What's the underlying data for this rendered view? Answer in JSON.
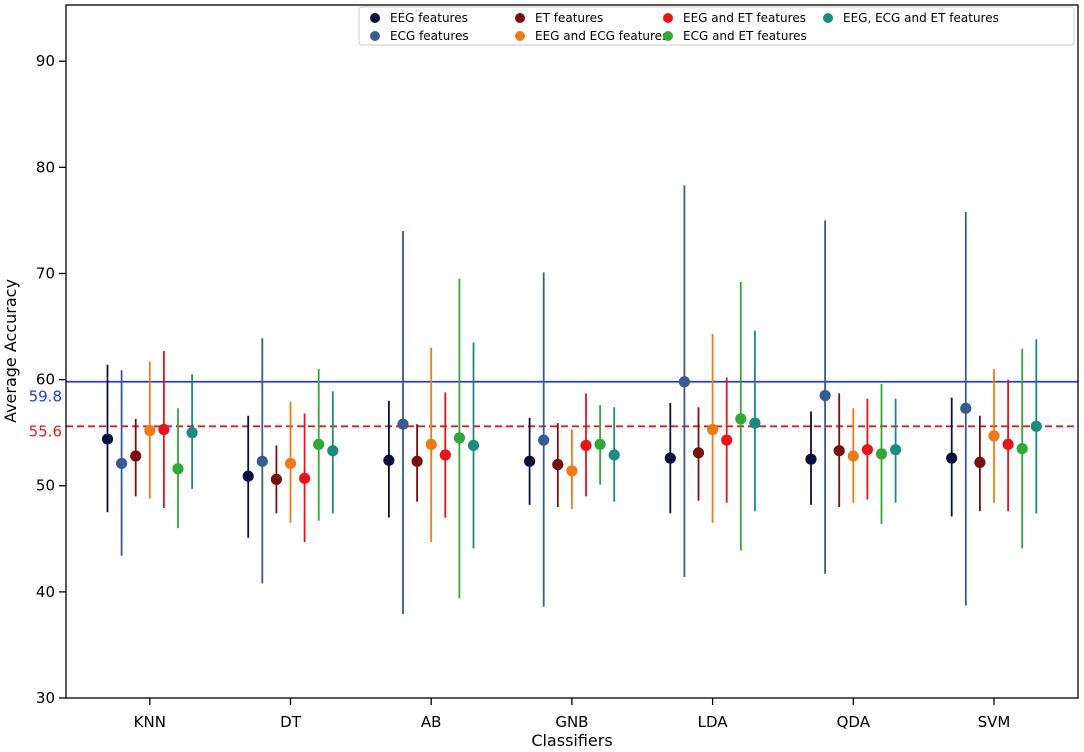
{
  "chart_data": {
    "type": "scatter",
    "subtype": "errorbar",
    "xlabel": "Classifiers",
    "ylabel": "Average Accuracy",
    "categories": [
      "KNN",
      "DT",
      "AB",
      "GNB",
      "LDA",
      "QDA",
      "SVM"
    ],
    "yticks": [
      30,
      40,
      50,
      60,
      70,
      80,
      90
    ],
    "ytick_labels": [
      "30",
      "40",
      "50",
      "60",
      "70",
      "80",
      "90"
    ],
    "ylim": [
      30,
      95.3
    ],
    "grid": false,
    "legend_position": "top-right",
    "reference_lines": [
      {
        "value": 59.8,
        "label": "59.8",
        "style": "solid",
        "color": "#1f3fd1"
      },
      {
        "value": 55.6,
        "label": "55.6",
        "style": "dashed",
        "color": "#e31a1c"
      }
    ],
    "series": [
      {
        "name": "EEG features",
        "color": "#0b0f3d",
        "values": [
          54.4,
          50.9,
          52.4,
          52.3,
          52.6,
          52.5,
          52.6
        ],
        "lower": [
          47.5,
          45.1,
          47.0,
          48.2,
          47.4,
          48.2,
          47.1
        ],
        "upper": [
          61.4,
          56.6,
          58.0,
          56.4,
          57.8,
          57.0,
          58.3
        ]
      },
      {
        "name": "ECG features",
        "color": "#3a5a94",
        "values": [
          52.1,
          52.3,
          55.8,
          54.3,
          59.8,
          58.5,
          57.3
        ],
        "lower": [
          43.4,
          40.8,
          37.9,
          38.6,
          41.4,
          41.7,
          38.7
        ],
        "upper": [
          60.9,
          63.9,
          74.0,
          70.1,
          78.3,
          75.0,
          75.8
        ]
      },
      {
        "name": "ET features",
        "color": "#7a0f0f",
        "values": [
          52.8,
          50.6,
          52.3,
          52.0,
          53.1,
          53.3,
          52.2
        ],
        "lower": [
          49.0,
          47.4,
          48.5,
          48.0,
          48.6,
          48.0,
          47.6
        ],
        "upper": [
          56.3,
          53.8,
          55.8,
          55.9,
          57.4,
          58.7,
          56.6
        ]
      },
      {
        "name": "EEG and ECG features",
        "color": "#f07a17",
        "values": [
          55.2,
          52.1,
          53.9,
          51.4,
          55.3,
          52.8,
          54.7
        ],
        "lower": [
          48.8,
          46.5,
          44.7,
          47.8,
          46.5,
          48.4,
          48.4
        ],
        "upper": [
          61.7,
          57.9,
          63.0,
          55.3,
          64.3,
          57.3,
          61.0
        ]
      },
      {
        "name": "EEG and ET features",
        "color": "#e8141b",
        "values": [
          55.3,
          50.7,
          52.9,
          53.8,
          54.3,
          53.4,
          53.9
        ],
        "lower": [
          47.9,
          44.7,
          47.0,
          49.0,
          48.4,
          48.7,
          47.6
        ],
        "upper": [
          62.7,
          56.8,
          58.8,
          58.7,
          60.2,
          58.2,
          60.0
        ]
      },
      {
        "name": "ECG and ET features",
        "color": "#33a83a",
        "values": [
          51.6,
          53.9,
          54.5,
          53.9,
          56.3,
          53.0,
          53.5
        ],
        "lower": [
          46.0,
          46.7,
          39.4,
          50.1,
          43.9,
          46.4,
          44.1
        ],
        "upper": [
          57.3,
          61.0,
          69.5,
          57.6,
          69.2,
          59.6,
          62.9
        ]
      },
      {
        "name": "EEG, ECG and ET features",
        "color": "#1a8b82",
        "values": [
          55.0,
          53.3,
          53.8,
          52.9,
          55.9,
          53.4,
          55.6
        ],
        "lower": [
          49.7,
          47.4,
          44.1,
          48.5,
          47.6,
          48.4,
          47.4
        ],
        "upper": [
          60.5,
          58.9,
          63.5,
          57.4,
          64.6,
          58.2,
          63.8
        ]
      }
    ]
  }
}
